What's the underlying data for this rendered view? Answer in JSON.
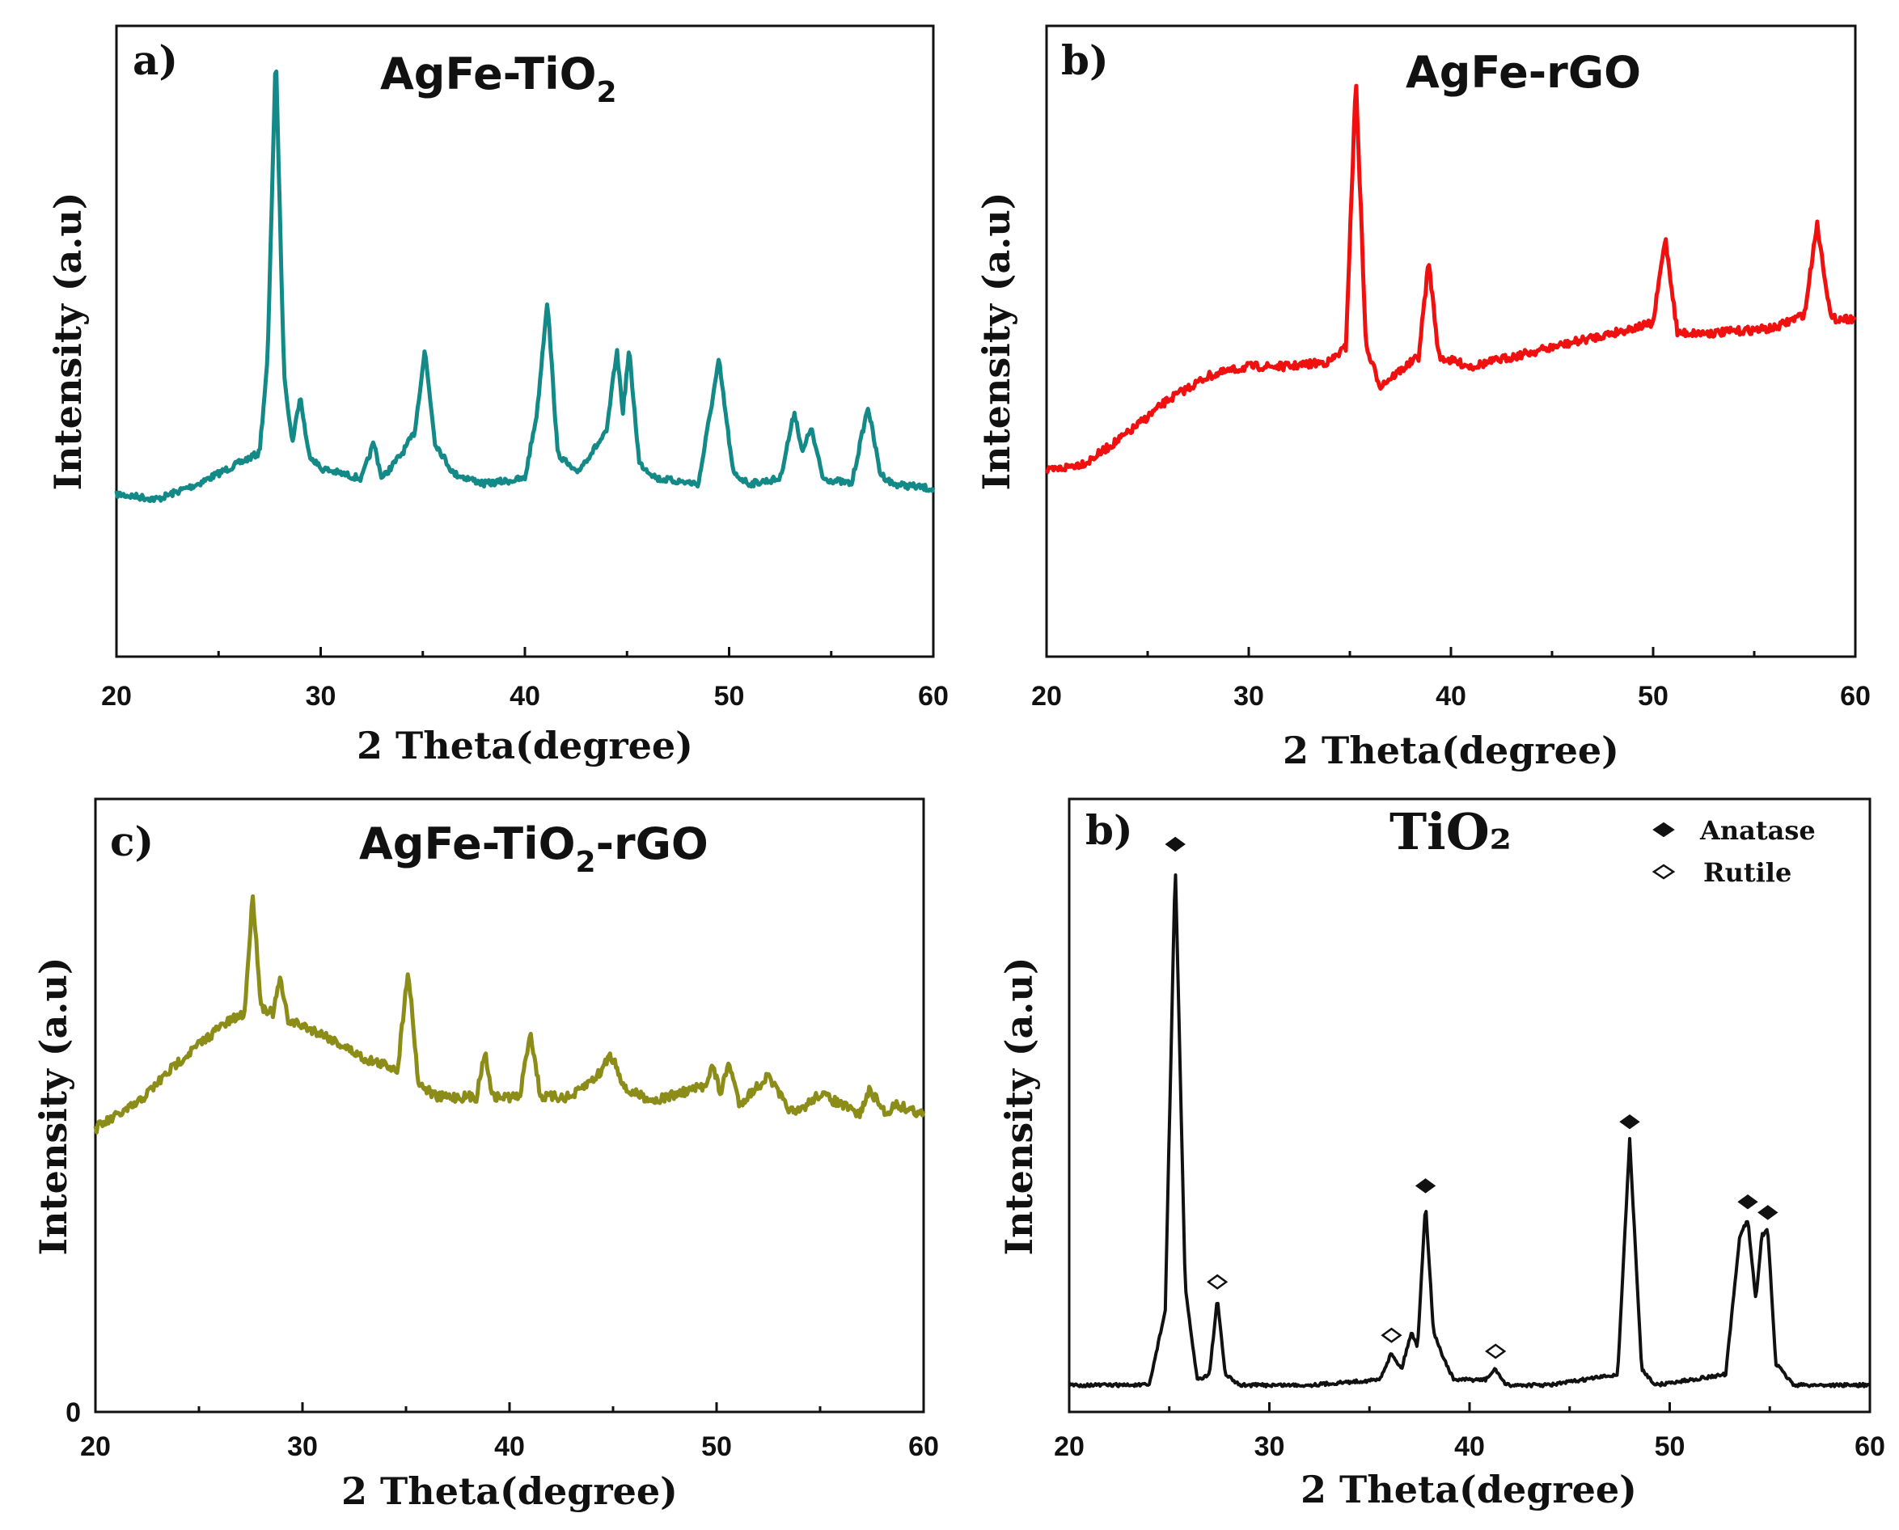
{
  "chart_data": [
    {
      "type": "line",
      "panel_label": "a)",
      "title": "AgFe-TiO",
      "title_subscript": "2",
      "xlabel": "2 Theta(degree)",
      "ylabel": "Intensity (a.u)",
      "xlim": [
        20,
        60
      ],
      "ylim": [
        0,
        100
      ],
      "xticks": [
        "20",
        "30",
        "40",
        "50",
        "60"
      ],
      "color": "#138a88",
      "series": [
        {
          "name": "AgFe-TiO2",
          "x": [
            20,
            22,
            24,
            26,
            27.0,
            27.4,
            27.8,
            28.2,
            28.6,
            29.0,
            29.4,
            30,
            32,
            32.6,
            33.0,
            34,
            34.6,
            35.1,
            35.6,
            36.5,
            38,
            40,
            40.6,
            41.1,
            41.6,
            42.5,
            44.0,
            44.5,
            44.8,
            45.1,
            45.6,
            46.5,
            48.5,
            49.5,
            50.2,
            51,
            52.5,
            53.2,
            53.6,
            54.0,
            54.6,
            56,
            56.8,
            57.4,
            58,
            60
          ],
          "y": [
            14,
            13,
            16,
            20,
            22,
            40,
            100,
            38,
            24,
            33,
            22,
            19,
            17,
            24,
            17,
            22,
            26,
            42,
            24,
            18,
            16,
            17,
            30,
            52,
            22,
            18,
            26,
            42,
            30,
            42,
            20,
            17,
            16,
            40,
            18,
            16,
            17,
            30,
            22,
            27,
            17,
            16,
            31,
            18,
            16,
            15
          ]
        }
      ]
    },
    {
      "type": "line",
      "panel_label": "b)",
      "title": "AgFe-rGO",
      "xlabel": "2 Theta(degree)",
      "ylabel": "Intensity (a.u)",
      "xlim": [
        20,
        60
      ],
      "ylim": [
        0,
        100
      ],
      "xticks": [
        "20",
        "30",
        "40",
        "50",
        "60"
      ],
      "color": "#f01010",
      "series": [
        {
          "name": "AgFe-rGO",
          "x": [
            20,
            22,
            24,
            26,
            28,
            30,
            32,
            34,
            34.8,
            35.3,
            35.8,
            36.5,
            38.4,
            38.9,
            39.4,
            41,
            44,
            47,
            50,
            50.6,
            51.2,
            53,
            56,
            57.5,
            58.1,
            58.8,
            60
          ],
          "y": [
            18,
            20,
            26,
            33,
            38,
            40,
            40,
            41,
            44,
            100,
            44,
            36,
            42,
            62,
            42,
            40,
            43,
            46,
            49,
            67,
            47,
            47,
            48,
            51,
            70,
            50,
            50
          ]
        }
      ]
    },
    {
      "type": "line",
      "panel_label": "c)",
      "title": "AgFe-TiO",
      "title_subscript": "2",
      "title_suffix": "-rGO",
      "xlabel": "2 Theta(degree)",
      "ylabel": "Intensity (a.u)",
      "xlim": [
        20,
        60
      ],
      "ylim": [
        0,
        100
      ],
      "xticks": [
        "20",
        "30",
        "40",
        "50",
        "60"
      ],
      "yticks": [
        "0"
      ],
      "color": "#8c8c18",
      "series": [
        {
          "name": "AgFe-TiO2-rGO",
          "x": [
            20,
            22,
            24,
            26,
            27.2,
            27.6,
            28.0,
            28.6,
            28.9,
            29.3,
            31,
            33,
            34.6,
            35.1,
            35.6,
            36.5,
            38.4,
            38.8,
            39.2,
            40.5,
            41.0,
            41.5,
            43,
            44.4,
            44.8,
            45.1,
            45.6,
            47,
            49.4,
            49.8,
            50.2,
            50.6,
            51.1,
            52.5,
            53.3,
            53.8,
            55,
            56.9,
            57.4,
            58.2,
            58.6,
            60
          ],
          "y": [
            33,
            40,
            52,
            62,
            66,
            100,
            68,
            66,
            76,
            64,
            60,
            53,
            50,
            79,
            46,
            42,
            42,
            55,
            42,
            42,
            61,
            42,
            42,
            49,
            54,
            52,
            44,
            41,
            45,
            51,
            43,
            52,
            40,
            48,
            40,
            37,
            43,
            37,
            44,
            37,
            40,
            37
          ]
        }
      ]
    },
    {
      "type": "line",
      "panel_label": "b)",
      "title": "TiO₂",
      "xlabel": "2 Theta(degree)",
      "ylabel": "Intensity (a.u)",
      "xlim": [
        20,
        60
      ],
      "ylim": [
        0,
        100
      ],
      "xticks": [
        "20",
        "30",
        "40",
        "50",
        "60"
      ],
      "color": "#111111",
      "legend": [
        {
          "marker": "filled-diamond",
          "label": "Anatase"
        },
        {
          "marker": "open-diamond",
          "label": "Rutile"
        }
      ],
      "legend_position": "top-right",
      "series": [
        {
          "name": "TiO2",
          "x": [
            20,
            24,
            24.8,
            25.3,
            25.8,
            26.4,
            27.0,
            27.4,
            27.8,
            28.5,
            32,
            35.5,
            36.1,
            36.6,
            37.1,
            37.4,
            37.8,
            38.2,
            38.6,
            39.2,
            40.8,
            41.3,
            41.8,
            44,
            47.4,
            48.0,
            48.6,
            49.3,
            52.8,
            53.5,
            53.9,
            54.3,
            54.6,
            54.9,
            55.3,
            56.2,
            60
          ],
          "y": [
            2,
            2,
            16,
            100,
            20,
            3,
            4,
            18,
            4,
            2,
            2,
            3,
            8,
            5,
            12,
            9,
            36,
            12,
            8,
            3,
            3,
            5,
            2,
            2,
            4,
            48,
            5,
            2,
            4,
            30,
            33,
            18,
            30,
            31,
            6,
            2,
            2
          ]
        }
      ],
      "annotations": [
        {
          "x": 25.3,
          "y": 100,
          "marker": "filled-diamond"
        },
        {
          "x": 27.4,
          "y": 18,
          "marker": "open-diamond"
        },
        {
          "x": 36.1,
          "y": 8,
          "marker": "open-diamond"
        },
        {
          "x": 37.8,
          "y": 36,
          "marker": "filled-diamond"
        },
        {
          "x": 41.3,
          "y": 5,
          "marker": "open-diamond"
        },
        {
          "x": 48.0,
          "y": 48,
          "marker": "filled-diamond"
        },
        {
          "x": 53.9,
          "y": 33,
          "marker": "filled-diamond"
        },
        {
          "x": 54.9,
          "y": 31,
          "marker": "filled-diamond"
        }
      ]
    }
  ]
}
